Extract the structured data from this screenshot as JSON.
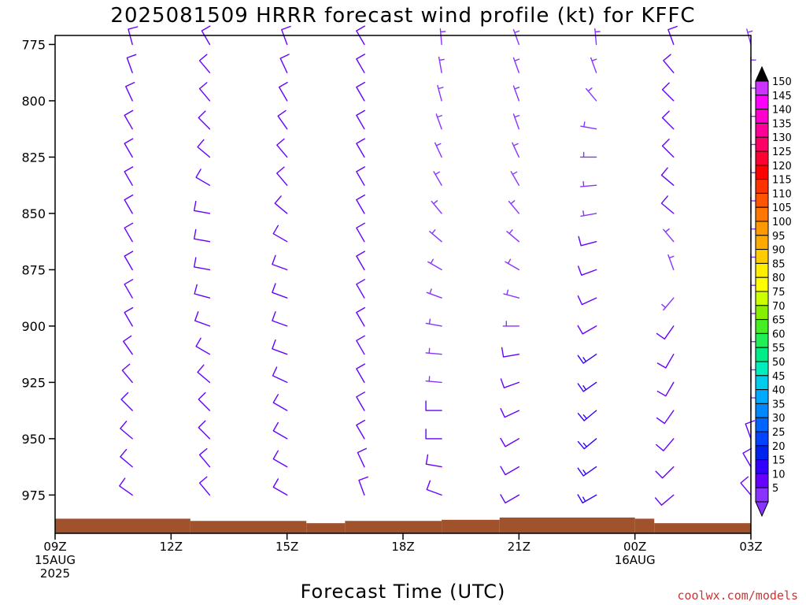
{
  "chart_data": {
    "type": "wind-barb-profile",
    "title": "2025081509 HRRR forecast wind profile (kt) for KFFC",
    "xlabel": "Forecast Time (UTC)",
    "credit": "coolwx.com/models",
    "y_ticks": [
      "775",
      "800",
      "825",
      "850",
      "875",
      "900",
      "925",
      "950",
      "975"
    ],
    "ylim_hpa": [
      771,
      992
    ],
    "x_range_hours": [
      0,
      18
    ],
    "x_ticks": [
      {
        "hour": 0,
        "lines": [
          "09Z",
          "15AUG",
          "2025"
        ]
      },
      {
        "hour": 3,
        "lines": [
          "12Z"
        ]
      },
      {
        "hour": 6,
        "lines": [
          "15Z"
        ]
      },
      {
        "hour": 9,
        "lines": [
          "18Z"
        ]
      },
      {
        "hour": 12,
        "lines": [
          "21Z"
        ]
      },
      {
        "hour": 15,
        "lines": [
          "00Z",
          "16AUG"
        ]
      },
      {
        "hour": 18,
        "lines": [
          "03Z"
        ]
      }
    ],
    "surface_pressure_hpa": [
      {
        "from": 0,
        "to": 3.5,
        "p": 985.5
      },
      {
        "from": 3.5,
        "to": 6.5,
        "p": 986.5
      },
      {
        "from": 6.5,
        "to": 7.5,
        "p": 987.5
      },
      {
        "from": 7.5,
        "to": 10.0,
        "p": 986.5
      },
      {
        "from": 10.0,
        "to": 11.5,
        "p": 986.0
      },
      {
        "from": 11.5,
        "to": 15.0,
        "p": 985.0
      },
      {
        "from": 15.0,
        "to": 15.5,
        "p": 985.5
      },
      {
        "from": 15.5,
        "to": 18.0,
        "p": 987.5
      }
    ],
    "barb_levels_hpa": [
      775,
      787.5,
      800,
      812.5,
      825,
      837.5,
      850,
      862.5,
      875,
      887.5,
      900,
      912.5,
      925,
      937.5,
      950,
      962.5,
      975
    ],
    "barb_columns": [
      {
        "hour": 2,
        "dir": [
          345,
          340,
          335,
          330,
          330,
          330,
          330,
          330,
          330,
          330,
          330,
          325,
          320,
          315,
          310,
          310,
          305
        ],
        "spd": [
          10,
          10,
          10,
          10,
          10,
          10,
          10,
          10,
          10,
          10,
          10,
          10,
          10,
          10,
          10,
          10,
          10
        ]
      },
      {
        "hour": 4,
        "dir": [
          330,
          320,
          320,
          315,
          310,
          300,
          280,
          280,
          280,
          285,
          290,
          300,
          310,
          315,
          315,
          320,
          320
        ],
        "spd": [
          10,
          10,
          10,
          10,
          10,
          10,
          10,
          10,
          10,
          10,
          10,
          10,
          10,
          10,
          10,
          10,
          10
        ]
      },
      {
        "hour": 6,
        "dir": [
          340,
          335,
          330,
          325,
          320,
          320,
          310,
          300,
          290,
          290,
          290,
          290,
          295,
          300,
          300,
          300,
          300
        ],
        "spd": [
          10,
          10,
          10,
          10,
          10,
          10,
          10,
          10,
          10,
          10,
          10,
          10,
          10,
          10,
          10,
          10,
          10
        ]
      },
      {
        "hour": 8,
        "dir": [
          330,
          330,
          330,
          330,
          330,
          330,
          330,
          330,
          330,
          330,
          330,
          330,
          330,
          330,
          330,
          335,
          340
        ],
        "spd": [
          10,
          10,
          10,
          10,
          10,
          10,
          10,
          10,
          10,
          10,
          10,
          10,
          10,
          10,
          10,
          10,
          10
        ]
      },
      {
        "hour": 10,
        "dir": [
          355,
          350,
          345,
          340,
          335,
          330,
          320,
          310,
          300,
          290,
          280,
          275,
          275,
          270,
          270,
          280,
          290
        ],
        "spd": [
          5,
          5,
          5,
          5,
          5,
          5,
          5,
          5,
          5,
          5,
          5,
          5,
          5,
          10,
          10,
          10,
          10
        ]
      },
      {
        "hour": 12,
        "dir": [
          340,
          340,
          340,
          340,
          335,
          330,
          320,
          310,
          300,
          285,
          270,
          260,
          250,
          245,
          240,
          240,
          240
        ],
        "spd": [
          5,
          5,
          5,
          5,
          5,
          5,
          5,
          5,
          5,
          5,
          5,
          10,
          10,
          10,
          10,
          10,
          10
        ]
      },
      {
        "hour": 14,
        "dir": [
          355,
          340,
          320,
          280,
          270,
          265,
          260,
          255,
          250,
          245,
          240,
          235,
          235,
          230,
          230,
          235,
          240
        ],
        "spd": [
          5,
          5,
          5,
          5,
          5,
          5,
          5,
          10,
          10,
          10,
          10,
          15,
          15,
          15,
          15,
          15,
          15
        ]
      },
      {
        "hour": 16,
        "dir": [
          340,
          320,
          315,
          315,
          315,
          310,
          310,
          320,
          340,
          220,
          215,
          210,
          210,
          215,
          220,
          225,
          230
        ],
        "spd": [
          10,
          10,
          10,
          10,
          10,
          10,
          10,
          5,
          5,
          5,
          10,
          10,
          10,
          10,
          10,
          10,
          10
        ]
      },
      {
        "hour": 18,
        "dir": [
          345,
          0,
          0,
          0,
          0,
          0,
          0,
          0,
          0,
          0,
          0,
          0,
          0,
          0,
          340,
          330,
          320
        ],
        "spd": [
          5,
          5,
          5,
          5,
          5,
          5,
          5,
          5,
          5,
          5,
          5,
          5,
          5,
          5,
          10,
          10,
          10
        ]
      }
    ],
    "colorbar": {
      "labels": [
        "150",
        "145",
        "140",
        "135",
        "130",
        "125",
        "120",
        "115",
        "110",
        "105",
        "100",
        "95",
        "90",
        "85",
        "80",
        "75",
        "70",
        "65",
        "60",
        "55",
        "50",
        "45",
        "40",
        "35",
        "30",
        "25",
        "20",
        "15",
        "10",
        "5"
      ],
      "colors": [
        "#cc33ff",
        "#ff00ff",
        "#ff00cc",
        "#ff0099",
        "#ff0066",
        "#ff0033",
        "#ff0000",
        "#ff3300",
        "#ff5500",
        "#ff7700",
        "#ff9900",
        "#ffaa00",
        "#ffcc00",
        "#ffee00",
        "#ffff00",
        "#ccff00",
        "#88ee00",
        "#44ee22",
        "#22ee55",
        "#00ee88",
        "#00eebb",
        "#00ccee",
        "#00aaff",
        "#0088ff",
        "#0066ff",
        "#0044ff",
        "#0022ee",
        "#3300ff",
        "#6600ff",
        "#8833ff"
      ]
    },
    "grid": false,
    "legend_position": "right"
  },
  "colors": {
    "ground": "#a0522d",
    "barb_slow": "#8833ff",
    "barb_medium": "#6600ff",
    "barb_fast": "#3300ff",
    "credit": "#cc3333"
  }
}
